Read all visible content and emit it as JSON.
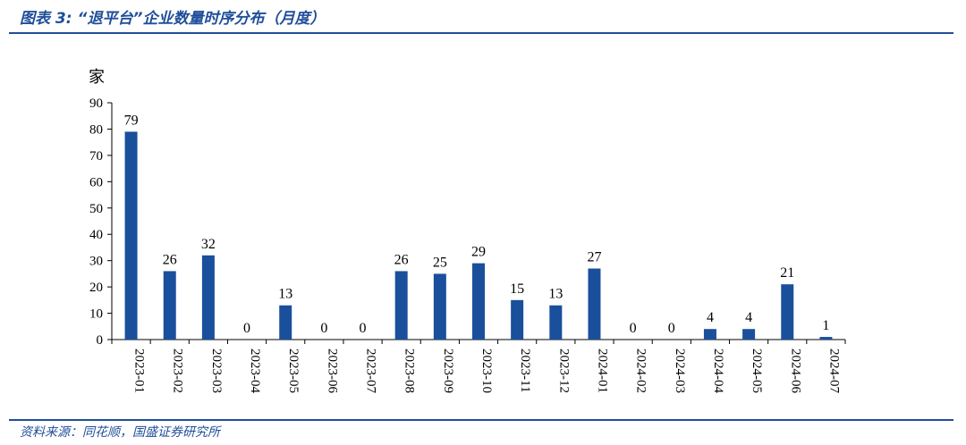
{
  "header": {
    "figure_number": "图表 3:",
    "title": "“退平台”企业数量时序分布（月度）"
  },
  "footer": {
    "source": "资料来源：同花顺，国盛证券研究所"
  },
  "colors": {
    "bar": "#1a4f9c",
    "rule": "#1f4e9a"
  },
  "chart_data": {
    "type": "bar",
    "title": "",
    "xlabel": "",
    "ylabel": "家",
    "ylim": [
      0,
      90
    ],
    "yticks": [
      0,
      10,
      20,
      30,
      40,
      50,
      60,
      70,
      80,
      90
    ],
    "grid": false,
    "legend": "none",
    "categories": [
      "2023-01",
      "2023-02",
      "2023-03",
      "2023-04",
      "2023-05",
      "2023-06",
      "2023-07",
      "2023-08",
      "2023-09",
      "2023-10",
      "2023-11",
      "2023-12",
      "2024-01",
      "2024-02",
      "2024-03",
      "2024-04",
      "2024-05",
      "2024-06",
      "2024-07"
    ],
    "values": [
      79,
      26,
      32,
      0,
      13,
      0,
      0,
      26,
      25,
      29,
      15,
      13,
      27,
      0,
      0,
      4,
      4,
      21,
      1
    ],
    "data_labels": true
  }
}
